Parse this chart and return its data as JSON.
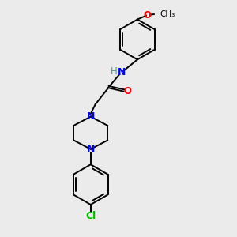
{
  "background_color": "#ebebeb",
  "bond_color": "#000000",
  "N_color": "#0000FF",
  "O_color": "#FF0000",
  "Cl_color": "#00BB00",
  "H_color": "#4a9a9a",
  "line_width": 1.4,
  "figsize": [
    3.0,
    3.0
  ],
  "dpi": 100,
  "xlim": [
    0,
    10
  ],
  "ylim": [
    0,
    10
  ]
}
